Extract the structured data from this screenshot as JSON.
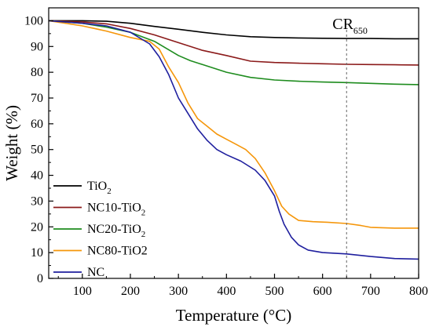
{
  "chart_data": {
    "type": "line",
    "xlabel": "Temperature (°C)",
    "ylabel": "Weight (%)",
    "xlim": [
      30,
      800
    ],
    "ylim": [
      0,
      105
    ],
    "xticks": [
      100,
      200,
      300,
      400,
      500,
      600,
      700,
      800
    ],
    "yticks": [
      0,
      10,
      20,
      30,
      40,
      50,
      60,
      70,
      80,
      90,
      100
    ],
    "legend_position": "bottom-left",
    "grid": false,
    "series": [
      {
        "name": "TiO",
        "name_subscript": "2",
        "color": "#000000",
        "x": [
          30,
          100,
          150,
          200,
          250,
          300,
          350,
          400,
          450,
          500,
          550,
          600,
          650,
          700,
          750,
          800
        ],
        "y": [
          100,
          100,
          99.8,
          99,
          97.8,
          96.7,
          95.5,
          94.5,
          93.8,
          93.5,
          93.3,
          93.2,
          93.1,
          93.1,
          93.0,
          93.0
        ]
      },
      {
        "name": "NC10-TiO",
        "name_subscript": "2",
        "color": "#8B1A1A",
        "x": [
          30,
          100,
          150,
          200,
          250,
          300,
          350,
          400,
          450,
          500,
          550,
          600,
          650,
          700,
          750,
          800
        ],
        "y": [
          100,
          99.5,
          98.8,
          97,
          94.5,
          91.5,
          88.5,
          86.5,
          84.3,
          83.8,
          83.5,
          83.3,
          83.1,
          83.0,
          82.9,
          82.8
        ]
      },
      {
        "name": "NC20-TiO",
        "name_subscript": "2",
        "color": "#1E8C1E",
        "x": [
          30,
          100,
          150,
          200,
          250,
          300,
          325,
          350,
          400,
          450,
          500,
          550,
          600,
          650,
          700,
          750,
          800
        ],
        "y": [
          100,
          99,
          97.5,
          95.5,
          92,
          86.5,
          84.5,
          83,
          80,
          78,
          77,
          76.5,
          76.2,
          76.0,
          75.7,
          75.4,
          75.2
        ]
      },
      {
        "name": "NC80-TiO2",
        "name_subscript": "",
        "color": "#F5960A",
        "x": [
          30,
          100,
          150,
          200,
          240,
          260,
          280,
          300,
          320,
          340,
          360,
          380,
          400,
          420,
          440,
          460,
          480,
          500,
          515,
          530,
          550,
          580,
          610,
          650,
          680,
          700,
          750,
          800
        ],
        "y": [
          100,
          98,
          96,
          93.5,
          92,
          89,
          82,
          76,
          68,
          62,
          59,
          56,
          54,
          52,
          50,
          46.5,
          41,
          34,
          28,
          25,
          22.5,
          22,
          21.8,
          21.3,
          20.5,
          19.8,
          19.5,
          19.5
        ]
      },
      {
        "name": "NC",
        "name_subscript": "",
        "color": "#1F1F9E",
        "x": [
          30,
          100,
          150,
          200,
          240,
          260,
          280,
          300,
          320,
          340,
          360,
          380,
          400,
          430,
          460,
          480,
          500,
          510,
          520,
          535,
          550,
          570,
          600,
          650,
          700,
          750,
          800
        ],
        "y": [
          100,
          99,
          98,
          95.5,
          91,
          86,
          79,
          70,
          64,
          58,
          53.5,
          50,
          48,
          45.5,
          42,
          38,
          32,
          26,
          21,
          16,
          13,
          11,
          10,
          9.5,
          8.5,
          7.7,
          7.5
        ]
      }
    ],
    "annotations": [
      {
        "text": "CR",
        "subscript": "650",
        "x": 650,
        "line_style": "dashed vertical"
      }
    ]
  }
}
